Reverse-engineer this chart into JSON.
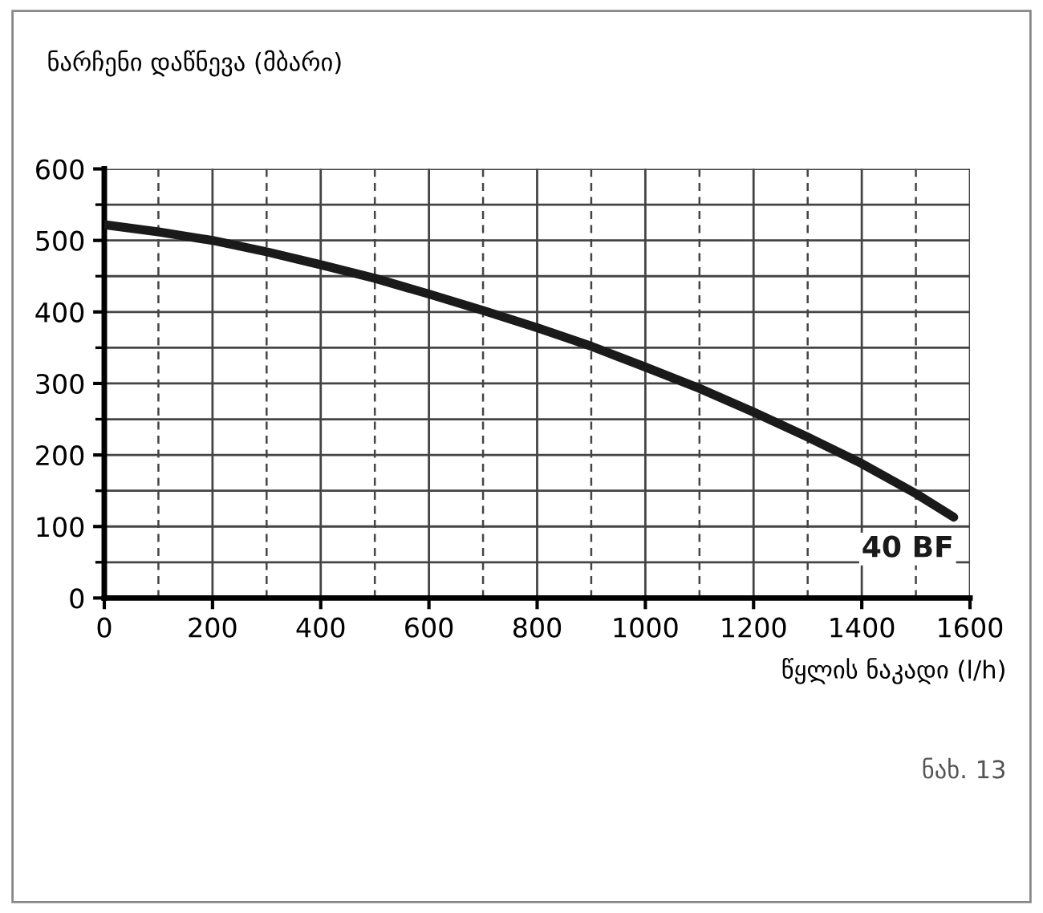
{
  "chart_data": {
    "type": "line",
    "ylabel": "ნარჩენი დაწნევა (მბარი)",
    "xlabel": "წყლის ნაკადი (l/h)",
    "annotations": [
      "ნახ. 13"
    ],
    "x": [
      0,
      100,
      200,
      300,
      400,
      500,
      600,
      700,
      800,
      900,
      1000,
      1100,
      1200,
      1300,
      1400,
      1500,
      1570
    ],
    "series": [
      {
        "name": "40 BF",
        "color": "#1a1a1a",
        "values": [
          522,
          512,
          500,
          484,
          466,
          447,
          425,
          402,
          378,
          352,
          323,
          293,
          260,
          225,
          188,
          146,
          113
        ]
      }
    ],
    "xlim": [
      0,
      1600
    ],
    "ylim": [
      0,
      600
    ],
    "xticks": [
      0,
      {
        "value": 100,
        "label": null
      },
      200,
      {
        "value": 300,
        "label": null
      },
      400,
      {
        "value": 500,
        "label": null
      },
      600,
      {
        "value": 700,
        "label": null
      },
      800,
      {
        "value": 900,
        "label": null
      },
      1000,
      {
        "value": 1100,
        "label": null
      },
      1200,
      {
        "value": 1300,
        "label": null
      },
      1400,
      {
        "value": 1500,
        "label": null
      },
      1600
    ],
    "yticks": [
      0,
      {
        "value": 50,
        "label": null
      },
      100,
      {
        "value": 150,
        "label": null
      },
      200,
      {
        "value": 250,
        "label": null
      },
      300,
      {
        "value": 350,
        "label": null
      },
      400,
      {
        "value": 450,
        "label": null
      },
      500,
      {
        "value": 550,
        "label": null
      },
      600
    ],
    "grid": true,
    "marker": "none",
    "line_style": "solid"
  }
}
